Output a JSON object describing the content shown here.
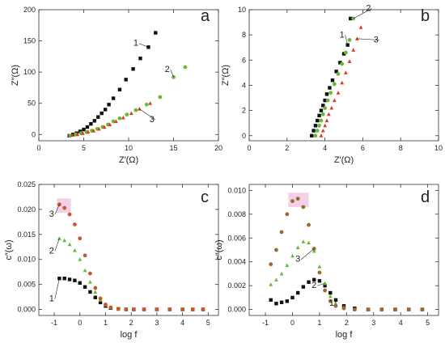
{
  "colors": {
    "series1": "#111111",
    "series2": "#6ab83a",
    "series3": "#e03a24",
    "series3_panel_c": "#c85a2a",
    "series3_panel_d": "#9a6b2a",
    "pink_highlight": "#f4d0e8"
  },
  "chart_data": [
    {
      "type": "scatter",
      "panel_label": "a",
      "xlabel": "Z′(Ω)",
      "ylabel": "Z″(Ω)",
      "xlim": [
        0,
        20
      ],
      "ylim": [
        -10,
        200
      ],
      "xticks": [
        "0",
        "5",
        "10",
        "15",
        "20"
      ],
      "yticks": [
        "0",
        "50",
        "100",
        "150",
        "200"
      ],
      "xtick_values": [
        0,
        5,
        10,
        15,
        20
      ],
      "ytick_values": [
        0,
        50,
        100,
        150,
        200
      ],
      "grid": false,
      "series": [
        {
          "name": "1",
          "x": [
            3.4,
            3.8,
            4.2,
            4.6,
            5.0,
            5.4,
            5.8,
            6.2,
            6.6,
            7.0,
            7.4,
            7.8,
            8.3,
            9.0,
            9.7,
            10.5,
            11.3,
            12.2,
            13.0
          ],
          "y": [
            -2,
            0,
            2,
            5,
            8,
            12,
            17,
            22,
            28,
            34,
            40,
            48,
            58,
            72,
            88,
            105,
            122,
            140,
            163
          ]
        },
        {
          "name": "2",
          "x": [
            3.5,
            4.1,
            4.7,
            5.3,
            5.9,
            6.5,
            7.1,
            7.7,
            8.3,
            9.0,
            9.8,
            10.8,
            12.0,
            13.5,
            15.0,
            16.3
          ],
          "y": [
            -2,
            0,
            2,
            4,
            6,
            9,
            12,
            16,
            21,
            26,
            32,
            39,
            48,
            60,
            92,
            108
          ]
        },
        {
          "name": "3",
          "x": [
            3.7,
            4.3,
            4.9,
            5.5,
            6.1,
            6.7,
            7.3,
            7.9,
            8.6,
            9.4,
            10.3,
            11.2,
            12.4
          ],
          "y": [
            -1,
            0,
            2,
            4,
            6,
            9,
            12,
            16,
            21,
            27,
            34,
            41,
            50
          ]
        }
      ],
      "labels": [
        {
          "text": "1",
          "x": 10.8,
          "y": 142
        },
        {
          "text": "2",
          "x": 14.3,
          "y": 100
        },
        {
          "text": "3",
          "x": 12.6,
          "y": 20
        }
      ]
    },
    {
      "type": "scatter",
      "panel_label": "b",
      "xlabel": "Z′(Ω)",
      "ylabel": "Z″(Ω)",
      "xlim": [
        0,
        10
      ],
      "ylim": [
        -0.4,
        10
      ],
      "xticks": [
        "0",
        "2",
        "4",
        "6",
        "8",
        "10"
      ],
      "yticks": [
        "0",
        "2",
        "4",
        "6",
        "8",
        "10"
      ],
      "xtick_values": [
        0,
        2,
        4,
        6,
        8,
        10
      ],
      "ytick_values": [
        0,
        2,
        4,
        6,
        8,
        10
      ],
      "grid": false,
      "series": [
        {
          "name": "1",
          "x": [
            3.3,
            3.4,
            3.5,
            3.6,
            3.7,
            3.8,
            3.9,
            4.0,
            4.1,
            4.25,
            4.4,
            4.6,
            4.8,
            5.0,
            5.2,
            5.35
          ],
          "y": [
            0.0,
            0.4,
            0.8,
            1.2,
            1.6,
            2.0,
            2.4,
            2.8,
            3.3,
            3.8,
            4.4,
            5.1,
            5.8,
            6.5,
            7.2,
            9.3
          ]
        },
        {
          "name": "2",
          "x": [
            3.5,
            3.6,
            3.7,
            3.8,
            3.9,
            4.0,
            4.15,
            4.3,
            4.5,
            4.7,
            4.9,
            5.1,
            5.3,
            5.5
          ],
          "y": [
            0.0,
            0.4,
            0.8,
            1.2,
            1.7,
            2.2,
            2.8,
            3.4,
            4.1,
            4.9,
            5.7,
            6.6,
            7.6,
            9.3
          ]
        },
        {
          "name": "3",
          "x": [
            3.8,
            3.9,
            4.0,
            4.1,
            4.2,
            4.35,
            4.5,
            4.7,
            4.9,
            5.1,
            5.3,
            5.5,
            5.7,
            5.9
          ],
          "y": [
            0.0,
            0.4,
            0.8,
            1.2,
            1.7,
            2.2,
            2.8,
            3.4,
            4.2,
            5.0,
            5.9,
            6.8,
            7.7,
            8.6
          ]
        }
      ],
      "labels": [
        {
          "text": "1",
          "x": 4.9,
          "y": 7.8
        },
        {
          "text": "2",
          "x": 6.3,
          "y": 9.9
        },
        {
          "text": "3",
          "x": 6.7,
          "y": 7.4
        }
      ]
    },
    {
      "type": "scatter",
      "panel_label": "c",
      "xlabel": "log f",
      "ylabel": "c″(ω)",
      "xlim": [
        -1.6,
        5.4
      ],
      "ylim": [
        -0.0012,
        0.025
      ],
      "xticks": [
        "-1",
        "0",
        "1",
        "2",
        "3",
        "4",
        "5"
      ],
      "yticks": [
        "0.000",
        "0.005",
        "0.010",
        "0.015",
        "0.020",
        "0.025"
      ],
      "xtick_values": [
        -1,
        0,
        1,
        2,
        3,
        4,
        5
      ],
      "ytick_values": [
        0,
        0.005,
        0.01,
        0.015,
        0.02,
        0.025
      ],
      "grid": false,
      "series": [
        {
          "name": "1",
          "x": [
            -0.8,
            -0.6,
            -0.4,
            -0.2,
            0.0,
            0.2,
            0.4,
            0.6,
            0.8,
            1.0,
            1.2,
            1.5,
            1.8,
            2.1,
            2.5,
            3.0,
            3.5,
            4.0,
            4.4,
            4.8
          ],
          "y": [
            0.0062,
            0.0062,
            0.006,
            0.0058,
            0.0053,
            0.0045,
            0.0035,
            0.0024,
            0.0014,
            0.0007,
            0.0003,
            0.0001,
            0,
            0,
            0,
            0,
            0,
            0,
            0,
            0
          ]
        },
        {
          "name": "2",
          "x": [
            -0.8,
            -0.6,
            -0.4,
            -0.2,
            0.0,
            0.2,
            0.4,
            0.6,
            0.8,
            1.0,
            1.2,
            1.5,
            1.8,
            2.1,
            2.5,
            3.0,
            3.5,
            4.0,
            4.4,
            4.8
          ],
          "y": [
            0.0142,
            0.0138,
            0.013,
            0.0118,
            0.01,
            0.0078,
            0.0055,
            0.0035,
            0.0019,
            0.0009,
            0.0004,
            0.0001,
            0,
            0,
            0,
            0,
            0,
            0,
            0,
            0
          ]
        },
        {
          "name": "3",
          "x": [
            -0.8,
            -0.6,
            -0.4,
            -0.2,
            0.0,
            0.2,
            0.4,
            0.6,
            0.8,
            1.0,
            1.2,
            1.5,
            1.8,
            2.1,
            2.5,
            3.0,
            3.5,
            4.0,
            4.4,
            4.8
          ],
          "y": [
            0.021,
            0.0203,
            0.019,
            0.017,
            0.0142,
            0.0108,
            0.0072,
            0.0043,
            0.0022,
            0.001,
            0.0004,
            0.0001,
            0,
            0,
            0,
            0,
            0,
            0,
            0,
            0
          ]
        }
      ],
      "labels": [
        {
          "text": "3",
          "x": -1.1,
          "y": 0.0185
        },
        {
          "text": "2",
          "x": -1.1,
          "y": 0.0112
        },
        {
          "text": "1",
          "x": -1.1,
          "y": 0.0016
        }
      ]
    },
    {
      "type": "scatter",
      "panel_label": "d",
      "xlabel": "log f",
      "ylabel": "c″(ω)",
      "xlim": [
        -1.6,
        5.4
      ],
      "ylim": [
        -0.0005,
        0.0105
      ],
      "xticks": [
        "-1",
        "0",
        "1",
        "2",
        "3",
        "4",
        "5"
      ],
      "yticks": [
        "0.000",
        "0.002",
        "0.004",
        "0.006",
        "0.008",
        "0.010"
      ],
      "xtick_values": [
        -1,
        0,
        1,
        2,
        3,
        4,
        5
      ],
      "ytick_values": [
        0,
        0.002,
        0.004,
        0.006,
        0.008,
        0.01
      ],
      "grid": false,
      "series": [
        {
          "name": "1",
          "x": [
            -0.8,
            -0.6,
            -0.4,
            -0.2,
            0.0,
            0.2,
            0.4,
            0.6,
            0.8,
            1.0,
            1.2,
            1.4,
            1.6,
            1.9,
            2.3,
            2.8,
            3.3,
            3.8,
            4.3,
            4.8
          ],
          "y": [
            0.0008,
            0.0005,
            0.0006,
            0.0007,
            0.001,
            0.0014,
            0.0019,
            0.0023,
            0.0025,
            0.0024,
            0.002,
            0.0014,
            0.0008,
            0.0003,
            0.0001,
            0,
            0,
            0,
            0,
            0
          ]
        },
        {
          "name": "2",
          "x": [
            -0.8,
            -0.6,
            -0.4,
            -0.2,
            0.0,
            0.2,
            0.4,
            0.6,
            0.8,
            1.0,
            1.2,
            1.4,
            1.6,
            1.9,
            2.3,
            2.8,
            3.3,
            3.8,
            4.3,
            4.8
          ],
          "y": [
            0.0021,
            0.0025,
            0.003,
            0.0037,
            0.0045,
            0.0052,
            0.0057,
            0.0056,
            0.0049,
            0.0036,
            0.0022,
            0.0011,
            0.0005,
            0.0002,
            0,
            0,
            0,
            0,
            0,
            0
          ]
        },
        {
          "name": "3",
          "x": [
            -0.8,
            -0.6,
            -0.4,
            -0.2,
            0.0,
            0.2,
            0.4,
            0.6,
            0.8,
            1.0,
            1.2,
            1.4,
            1.6,
            1.9,
            2.3,
            2.8,
            3.3,
            3.8,
            4.3,
            4.8
          ],
          "y": [
            0.0038,
            0.005,
            0.0065,
            0.008,
            0.0091,
            0.0093,
            0.0086,
            0.0071,
            0.0051,
            0.0031,
            0.0016,
            0.0007,
            0.0003,
            0.0001,
            0,
            0,
            0,
            0,
            0,
            0
          ]
        }
      ],
      "labels": [
        {
          "text": "3",
          "x": 0.2,
          "y": 0.004
        },
        {
          "text": "2",
          "x": 0.8,
          "y": 0.0018
        },
        {
          "text": "1",
          "x": 1.45,
          "y": 0.0003
        }
      ]
    }
  ]
}
